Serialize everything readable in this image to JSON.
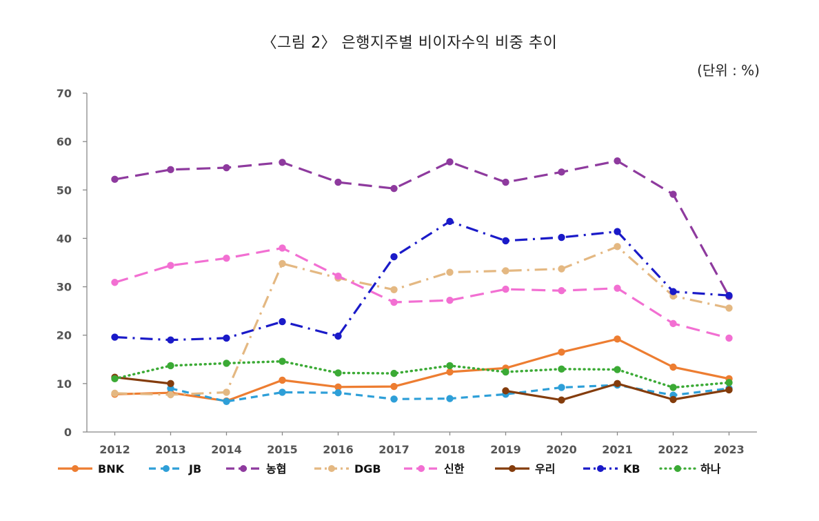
{
  "chart_data": {
    "type": "line",
    "title": "〈그림 2〉 은행지주별 비이자수익 비중 추이",
    "unit": "(단위 : %)",
    "xlabel": "",
    "ylabel": "",
    "ylim": [
      0,
      70
    ],
    "yticks": [
      "0",
      "10",
      "20",
      "30",
      "40",
      "50",
      "60",
      "70"
    ],
    "categories": [
      "2012",
      "2013",
      "2014",
      "2015",
      "2016",
      "2017",
      "2018",
      "2019",
      "2020",
      "2021",
      "2022",
      "2023"
    ],
    "legend_position": "bottom",
    "series": [
      {
        "name": "BNK",
        "color": "#ED7D31",
        "style": "solid",
        "values": [
          7.8,
          8.1,
          6.4,
          10.7,
          9.3,
          9.4,
          12.4,
          13.2,
          16.5,
          19.2,
          13.4,
          11.0
        ]
      },
      {
        "name": "JB",
        "color": "#2E9FD8",
        "style": "dash",
        "values": [
          null,
          9.0,
          6.3,
          8.2,
          8.1,
          6.8,
          6.9,
          7.8,
          9.2,
          9.7,
          7.6,
          9.0
        ]
      },
      {
        "name": "농협",
        "color": "#8E3A9E",
        "style": "longdash",
        "values": [
          52.2,
          54.2,
          54.6,
          55.7,
          51.6,
          50.3,
          55.8,
          51.6,
          53.7,
          56.0,
          49.1,
          28.0
        ]
      },
      {
        "name": "DGB",
        "color": "#E4B882",
        "style": "dashdot",
        "values": [
          8.0,
          7.7,
          8.2,
          34.8,
          31.8,
          29.4,
          33.0,
          33.3,
          33.7,
          38.3,
          28.1,
          25.6
        ]
      },
      {
        "name": "신한",
        "color": "#F26FD2",
        "style": "longdash",
        "values": [
          30.9,
          34.4,
          35.9,
          38.0,
          32.2,
          26.8,
          27.2,
          29.5,
          29.2,
          29.7,
          22.4,
          19.4
        ]
      },
      {
        "name": "우리",
        "color": "#843C0C",
        "style": "solid",
        "values": [
          11.3,
          10.0,
          null,
          null,
          null,
          null,
          null,
          8.5,
          6.6,
          10.0,
          6.7,
          8.7
        ]
      },
      {
        "name": "KB",
        "color": "#1A1AC8",
        "style": "dashdot",
        "values": [
          19.6,
          19.0,
          19.4,
          22.8,
          19.8,
          36.2,
          43.5,
          39.5,
          40.2,
          41.4,
          29.0,
          28.2
        ]
      },
      {
        "name": "하나",
        "color": "#3BAA35",
        "style": "dotted",
        "values": [
          11.0,
          13.7,
          14.2,
          14.6,
          12.2,
          12.1,
          13.7,
          12.4,
          13.0,
          12.9,
          9.2,
          10.2
        ]
      }
    ]
  }
}
